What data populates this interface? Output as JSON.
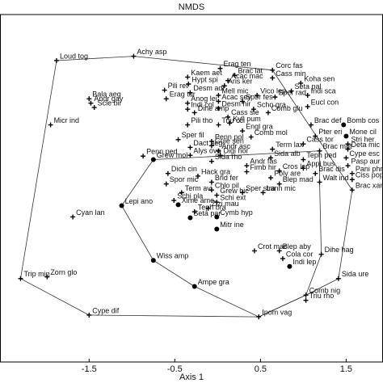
{
  "chart_data": {
    "type": "scatter",
    "title": "NMDS",
    "x_label": "Axis 1",
    "xlim": [
      -2.54,
      1.93
    ],
    "ylim": [
      -2,
      2
    ],
    "xticks": [
      -1.5,
      -0.5,
      0.5,
      1.5
    ],
    "color": "#000000",
    "points": [
      {
        "label": "Loud tog",
        "x": -1.88,
        "y": 1.47,
        "shape": "cross"
      },
      {
        "label": "Achy asp",
        "x": -0.98,
        "y": 1.52,
        "shape": "cross"
      },
      {
        "label": "Bala aeg",
        "x": -1.5,
        "y": 1.03,
        "shape": "cross"
      },
      {
        "label": "Andr gay",
        "x": -1.48,
        "y": 0.98,
        "shape": "cross"
      },
      {
        "label": "Scle bir",
        "x": -1.44,
        "y": 0.93,
        "shape": "cross"
      },
      {
        "label": "Micr ind",
        "x": -1.95,
        "y": 0.73,
        "shape": "cross"
      },
      {
        "label": "Cyan lan",
        "x": -1.69,
        "y": -0.33,
        "shape": "cross"
      },
      {
        "label": "Zorn glo",
        "x": -1.99,
        "y": -1.02,
        "shape": "cross"
      },
      {
        "label": "Trip min",
        "x": -2.3,
        "y": -1.04,
        "shape": "cross"
      },
      {
        "label": "Cype dif",
        "x": -1.5,
        "y": -1.46,
        "shape": "cross"
      },
      {
        "label": "Lepi ano",
        "x": -1.12,
        "y": -0.2,
        "shape": "dot"
      },
      {
        "label": "Penn ped",
        "x": -0.87,
        "y": 0.37,
        "shape": "cross"
      },
      {
        "label": "Grew mol",
        "x": -0.75,
        "y": 0.33,
        "shape": "dot"
      },
      {
        "label": "Wiss amp",
        "x": -0.75,
        "y": -0.83,
        "shape": "dot"
      },
      {
        "label": "Ampe gra",
        "x": -0.27,
        "y": -1.13,
        "shape": "dot"
      },
      {
        "label": "Ipom vag",
        "x": 0.48,
        "y": -1.48,
        "shape": "cross"
      },
      {
        "label": "Kaem aet",
        "x": -0.35,
        "y": 1.28,
        "shape": "cross"
      },
      {
        "label": "Hypt spi",
        "x": -0.34,
        "y": 1.2,
        "shape": "cross"
      },
      {
        "label": "Pili ret",
        "x": -0.62,
        "y": 1.13,
        "shape": "cross"
      },
      {
        "label": "Desm adi",
        "x": -0.32,
        "y": 1.1,
        "shape": "cross"
      },
      {
        "label": "Erag tur",
        "x": -0.6,
        "y": 1.03,
        "shape": "cross"
      },
      {
        "label": "Anog lei",
        "x": -0.35,
        "y": 0.98,
        "shape": "cross"
      },
      {
        "label": "Indi col",
        "x": -0.35,
        "y": 0.91,
        "shape": "cross"
      },
      {
        "label": "Dine amp",
        "x": -0.27,
        "y": 0.87,
        "shape": "cross"
      },
      {
        "label": "Pili tho",
        "x": -0.35,
        "y": 0.73,
        "shape": "cross"
      },
      {
        "label": "Erag ten",
        "x": 0.03,
        "y": 1.38,
        "shape": "cross"
      },
      {
        "label": "Brac lat",
        "x": 0.2,
        "y": 1.3,
        "shape": "cross"
      },
      {
        "label": "Acac mac",
        "x": 0.12,
        "y": 1.24,
        "shape": "cross"
      },
      {
        "label": "Aris ker",
        "x": 0.08,
        "y": 1.18,
        "shape": "cross"
      },
      {
        "label": "Mell mic",
        "x": 0.01,
        "y": 1.07,
        "shape": "cross"
      },
      {
        "label": "Acac sey",
        "x": 0.01,
        "y": 1.0,
        "shape": "cross"
      },
      {
        "label": "Desm hir",
        "x": 0.01,
        "y": 0.92,
        "shape": "cross"
      },
      {
        "label": "Triu cci",
        "x": 0.01,
        "y": 0.73,
        "shape": "cross"
      },
      {
        "label": "Corc fas",
        "x": 0.64,
        "y": 1.36,
        "shape": "cross"
      },
      {
        "label": "Cass min",
        "x": 0.64,
        "y": 1.27,
        "shape": "cross"
      },
      {
        "label": "Koha sen",
        "x": 0.97,
        "y": 1.21,
        "shape": "cross"
      },
      {
        "label": "Seta pal",
        "x": 0.86,
        "y": 1.12,
        "shape": "cross"
      },
      {
        "label": "Vico lep",
        "x": 0.46,
        "y": 1.07,
        "shape": "cross"
      },
      {
        "label": "Indi sca",
        "x": 1.05,
        "y": 1.07,
        "shape": "cross"
      },
      {
        "label": "Sper rad",
        "x": 0.67,
        "y": 1.05,
        "shape": "cross"
      },
      {
        "label": "Spor fes",
        "x": 0.29,
        "y": 1.0,
        "shape": "cross"
      },
      {
        "label": "Scho gra",
        "x": 0.42,
        "y": 0.91,
        "shape": "cross"
      },
      {
        "label": "Eucl con",
        "x": 1.05,
        "y": 0.94,
        "shape": "cross"
      },
      {
        "label": "Comb glu",
        "x": 0.59,
        "y": 0.87,
        "shape": "cross"
      },
      {
        "label": "Cass sie",
        "x": 0.12,
        "y": 0.82,
        "shape": "cross"
      },
      {
        "label": "Kyll pum",
        "x": 0.14,
        "y": 0.75,
        "shape": "cross"
      },
      {
        "label": "Engl gra",
        "x": 0.29,
        "y": 0.66,
        "shape": "cross"
      },
      {
        "label": "Sper fil",
        "x": -0.46,
        "y": 0.56,
        "shape": "cross"
      },
      {
        "label": "Comb mol",
        "x": 0.39,
        "y": 0.59,
        "shape": "cross"
      },
      {
        "label": "Penn pol",
        "x": -0.07,
        "y": 0.54,
        "shape": "cross"
      },
      {
        "label": "Guie sen",
        "x": -0.07,
        "y": 0.49,
        "shape": "cross"
      },
      {
        "label": "Dact aeg",
        "x": -0.32,
        "y": 0.47,
        "shape": "cross"
      },
      {
        "label": "Alys ova",
        "x": -0.32,
        "y": 0.38,
        "shape": "cross"
      },
      {
        "label": "Andr asc",
        "x": 0.01,
        "y": 0.43,
        "shape": "cross"
      },
      {
        "label": "Digi hor",
        "x": 0.03,
        "y": 0.38,
        "shape": "cross"
      },
      {
        "label": "Sida rho",
        "x": -0.07,
        "y": 0.31,
        "shape": "cross"
      },
      {
        "label": "Dich cin",
        "x": -0.58,
        "y": 0.17,
        "shape": "cross"
      },
      {
        "label": "Spor mic",
        "x": -0.6,
        "y": 0.05,
        "shape": "cross"
      },
      {
        "label": "Hack gra",
        "x": -0.23,
        "y": 0.14,
        "shape": "cross"
      },
      {
        "label": "Brid fer",
        "x": -0.07,
        "y": 0.07,
        "shape": "cross"
      },
      {
        "label": "Term avi",
        "x": -0.42,
        "y": -0.05,
        "shape": "cross"
      },
      {
        "label": "Chlo pil",
        "x": -0.07,
        "y": -0.02,
        "shape": "cross"
      },
      {
        "label": "Grew bic",
        "x": -0.01,
        "y": -0.08,
        "shape": "cross"
      },
      {
        "label": "Schi pla",
        "x": -0.51,
        "y": -0.14,
        "shape": "cross"
      },
      {
        "label": "Schi ext",
        "x": -0.01,
        "y": -0.16,
        "shape": "cross"
      },
      {
        "label": "Xime ame",
        "x": -0.46,
        "y": -0.19,
        "shape": "dot"
      },
      {
        "label": "Zizi mau",
        "x": -0.11,
        "y": -0.23,
        "shape": "cross"
      },
      {
        "label": "Teph bra",
        "x": -0.27,
        "y": -0.27,
        "shape": "cross"
      },
      {
        "label": "Seta par",
        "x": -0.32,
        "y": -0.34,
        "shape": "dot"
      },
      {
        "label": "Cymb hyp",
        "x": -0.01,
        "y": -0.33,
        "shape": "dot"
      },
      {
        "label": "Mitr ine",
        "x": -0.01,
        "y": -0.47,
        "shape": "dot"
      },
      {
        "label": "Brac def",
        "x": 1.09,
        "y": 0.73,
        "shape": "cross"
      },
      {
        "label": "Bomb cos",
        "x": 1.47,
        "y": 0.73,
        "shape": "dot"
      },
      {
        "label": "Mone cil",
        "x": 1.5,
        "y": 0.6,
        "shape": "dot"
      },
      {
        "label": "Pter eri",
        "x": 1.14,
        "y": 0.6,
        "shape": "cross"
      },
      {
        "label": "Cass tor",
        "x": 1.0,
        "y": 0.51,
        "shape": "cross"
      },
      {
        "label": "Stri her",
        "x": 1.52,
        "y": 0.51,
        "shape": "cross"
      },
      {
        "label": "Brac mut",
        "x": 1.19,
        "y": 0.43,
        "shape": "cross"
      },
      {
        "label": "Deta mic",
        "x": 1.52,
        "y": 0.45,
        "shape": "cross"
      },
      {
        "label": "Cype esc",
        "x": 1.5,
        "y": 0.35,
        "shape": "cross"
      },
      {
        "label": "Teph ped",
        "x": 1.0,
        "y": 0.33,
        "shape": "cross"
      },
      {
        "label": "Pasp aur",
        "x": 1.52,
        "y": 0.26,
        "shape": "cross"
      },
      {
        "label": "Pani phr",
        "x": 1.57,
        "y": 0.17,
        "shape": "cross"
      },
      {
        "label": "Ciss pop",
        "x": 1.57,
        "y": 0.1,
        "shape": "cross"
      },
      {
        "label": "Brac xan",
        "x": 1.57,
        "y": -0.02,
        "shape": "cross"
      },
      {
        "label": "Term lax",
        "x": 0.64,
        "y": 0.45,
        "shape": "cross"
      },
      {
        "label": "Sida alb",
        "x": 0.62,
        "y": 0.35,
        "shape": "cross"
      },
      {
        "label": "Appi bus",
        "x": 1.0,
        "y": 0.23,
        "shape": "cross"
      },
      {
        "label": "Brac dis",
        "x": 1.14,
        "y": 0.17,
        "shape": "cross"
      },
      {
        "label": "Walt ind",
        "x": 1.19,
        "y": 0.07,
        "shape": "cross"
      },
      {
        "label": "Cros lep",
        "x": 0.72,
        "y": 0.2,
        "shape": "cross"
      },
      {
        "label": "Andr fas",
        "x": 0.34,
        "y": 0.26,
        "shape": "cross"
      },
      {
        "label": "Fimb hir",
        "x": 0.34,
        "y": 0.19,
        "shape": "cross"
      },
      {
        "label": "Poly are",
        "x": 0.62,
        "y": 0.12,
        "shape": "cross"
      },
      {
        "label": "Lann mic",
        "x": 0.53,
        "y": -0.05,
        "shape": "cross"
      },
      {
        "label": "Blep mad",
        "x": 0.72,
        "y": 0.05,
        "shape": "cross"
      },
      {
        "label": "Sper stra",
        "x": 0.29,
        "y": -0.05,
        "shape": "cross"
      },
      {
        "label": "Blep aby",
        "x": 0.72,
        "y": -0.72,
        "shape": "cross"
      },
      {
        "label": "Cola cor",
        "x": 0.76,
        "y": -0.81,
        "shape": "cross"
      },
      {
        "label": "Indi lep",
        "x": 0.84,
        "y": -0.9,
        "shape": "dot"
      },
      {
        "label": "Crot mac",
        "x": 0.43,
        "y": -0.72,
        "shape": "cross"
      },
      {
        "label": "Dihe hag",
        "x": 1.21,
        "y": -0.76,
        "shape": "cross"
      },
      {
        "label": "Sida ure",
        "x": 1.41,
        "y": -1.04,
        "shape": "cross"
      },
      {
        "label": "Comb nig",
        "x": 1.03,
        "y": -1.23,
        "shape": "cross"
      },
      {
        "label": "Triu rho",
        "x": 1.03,
        "y": -1.29,
        "shape": "cross"
      }
    ],
    "hulls": [
      {
        "x": [
          -1.88,
          -0.98,
          0.64,
          1.57,
          1.41,
          1.03,
          0.48,
          -1.5,
          -2.3
        ],
        "y": [
          1.47,
          1.52,
          1.36,
          -0.02,
          -1.04,
          -1.23,
          -1.48,
          -1.46,
          -1.04
        ]
      },
      {
        "x": [
          -0.75,
          -1.12,
          -0.75,
          -0.27,
          0.48,
          1.03,
          1.21,
          1.19,
          1.19
        ],
        "y": [
          0.33,
          -0.2,
          -0.83,
          -1.13,
          -1.48,
          -1.23,
          -0.76,
          0.07,
          0.43
        ]
      }
    ]
  }
}
